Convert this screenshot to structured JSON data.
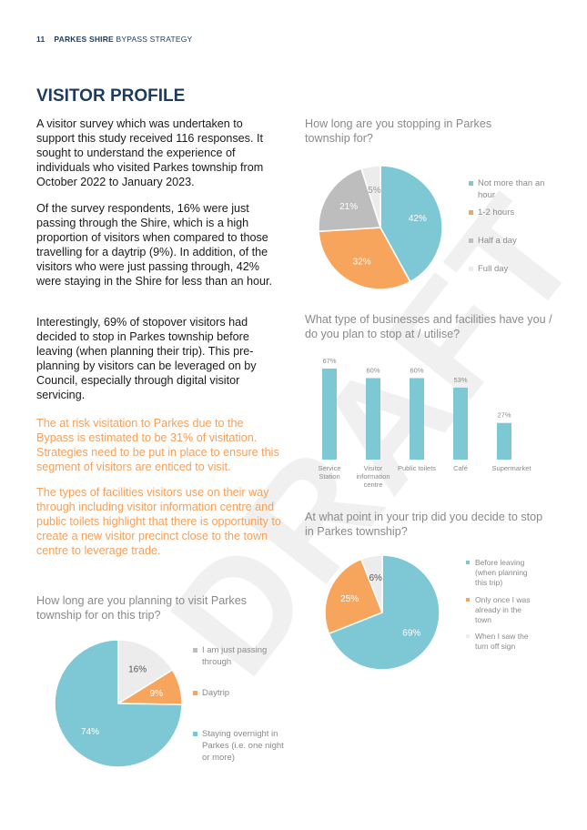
{
  "header": {
    "page_number": "11",
    "doc_bold": "PARKES SHIRE",
    "doc_rest": " BYPASS STRATEGY"
  },
  "title": "VISITOR PROFILE",
  "paragraphs": {
    "p1": "A visitor survey which was undertaken to support this study received 116 responses. It sought to understand the experience of individuals who visited Parkes township from October 2022 to January 2023.",
    "p2": "Of the survey respondents, 16% were just passing through the Shire, which is a high proportion of visitors when compared to those travelling for a daytrip (9%). In addition, of the visitors who were just passing through, 42% were staying in the Shire for less than an hour.",
    "p3": "Interestingly, 69% of stopover visitors had decided to stop in Parkes township before leaving (when planning their trip). This pre-planning by visitors can be leveraged on by Council, especially through digital visitor servicing.",
    "p4": "The at risk visitation to Parkes due to the Bypass is estimated to be 31% of visitation. Strategies need to be put in place to ensure this segment of visitors are enticed to visit.",
    "p5": "The types of facilities visitors use on their way through including visitor information centre and public toilets highlight that there is opportunity to create a new visitor precinct close to the town centre to leverage trade."
  },
  "watermark": "DRAFT",
  "colors": {
    "teal": "#7ec8d6",
    "orange": "#f7a45c",
    "grey": "#bdbdbd",
    "lightgrey": "#ececec",
    "navy": "#1f3a5f"
  },
  "chart_data": [
    {
      "type": "pie",
      "title": "How long are you stopping in Parkes township for?",
      "categories": [
        "Not more than an hour",
        "1-2 hours",
        "Half a day",
        "Full day"
      ],
      "values": [
        42,
        32,
        21,
        5
      ],
      "labels": [
        "42%",
        "32%",
        "21%",
        "5%"
      ]
    },
    {
      "type": "bar",
      "title": "What type of businesses and facilities have you / do you plan to stop at / utilise?",
      "categories": [
        "Service Station",
        "Visitor information centre",
        "Public toilets",
        "Café",
        "Supermarket"
      ],
      "values": [
        67,
        60,
        60,
        53,
        27
      ],
      "labels": [
        "67%",
        "60%",
        "60%",
        "53%",
        "27%"
      ],
      "ylim": [
        0,
        67
      ]
    },
    {
      "type": "pie",
      "title": "At what point in your trip did you decide to stop in Parkes township?",
      "categories": [
        "Before leaving (when planning this trip)",
        "Only once I was already in the town",
        "When I saw the turn off sign"
      ],
      "values": [
        69,
        25,
        6
      ],
      "labels": [
        "69%",
        "25%",
        "6%"
      ]
    },
    {
      "type": "pie",
      "title": "How long are you planning to visit Parkes township for on this trip?",
      "categories": [
        "I am just passing through",
        "Daytrip",
        "Staying overnight in Parkes (i.e. one night or more)"
      ],
      "values": [
        16,
        9,
        74
      ],
      "labels": [
        "16%",
        "9%",
        "74%"
      ]
    }
  ]
}
